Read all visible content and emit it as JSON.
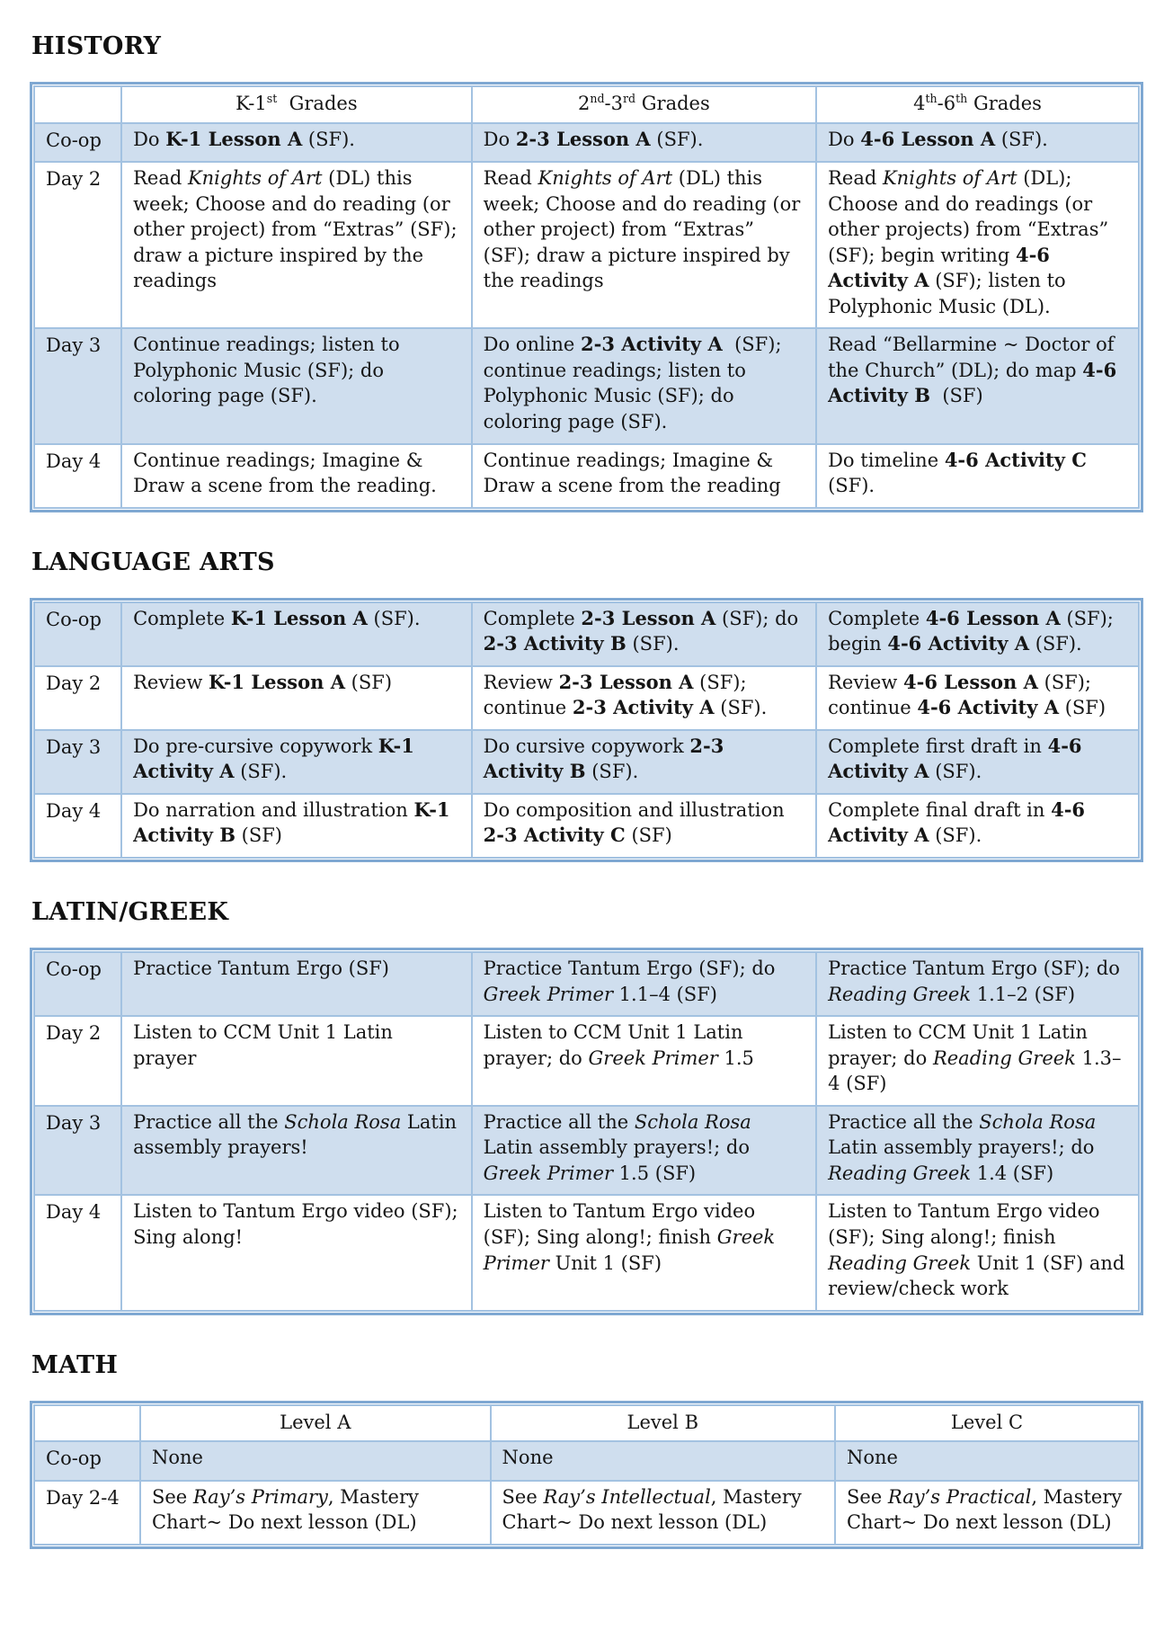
{
  "colors": {
    "outer_border": "#7fa8d2",
    "grid_line": "#a3c2e1",
    "shaded_row": "#cfdeee",
    "text": "#151515",
    "page_bg": "#ffffff"
  },
  "sections": [
    {
      "id": "history",
      "title": "HISTORY",
      "label_col_width": "7.9%",
      "header": [
        [
          {
            "t": "K-1"
          },
          {
            "t": "st",
            "sup": true
          },
          {
            "t": "  Grades"
          }
        ],
        [
          {
            "t": "2"
          },
          {
            "t": "nd",
            "sup": true
          },
          {
            "t": "-3"
          },
          {
            "t": "rd",
            "sup": true
          },
          {
            "t": " Grades"
          }
        ],
        [
          {
            "t": "4"
          },
          {
            "t": "th",
            "sup": true
          },
          {
            "t": "-6"
          },
          {
            "t": "th",
            "sup": true
          },
          {
            "t": " Grades"
          }
        ]
      ],
      "rows": [
        {
          "label": "Co-op",
          "shaded": true,
          "cells": [
            [
              {
                "t": "Do "
              },
              {
                "t": "K-1 Lesson A",
                "b": true
              },
              {
                "t": " (SF)."
              }
            ],
            [
              {
                "t": "Do "
              },
              {
                "t": "2-3 Lesson A",
                "b": true
              },
              {
                "t": " (SF)."
              }
            ],
            [
              {
                "t": "Do "
              },
              {
                "t": "4-6 Lesson A",
                "b": true
              },
              {
                "t": " (SF)."
              }
            ]
          ]
        },
        {
          "label": "Day 2",
          "shaded": false,
          "cells": [
            [
              {
                "t": "Read "
              },
              {
                "t": "Knights of Art",
                "i": true
              },
              {
                "t": " (DL) this week; Choose and do reading (or other project) from “Extras” (SF); draw a picture inspired by the readings"
              }
            ],
            [
              {
                "t": "Read "
              },
              {
                "t": "Knights of Art",
                "i": true
              },
              {
                "t": " (DL) this week; Choose and do reading (or other project) from “Extras” (SF); draw a picture inspired by the readings"
              }
            ],
            [
              {
                "t": "Read "
              },
              {
                "t": "Knights of Art",
                "i": true
              },
              {
                "t": " (DL); Choose and do readings (or other projects) from “Extras” (SF); begin writing "
              },
              {
                "t": "4-6 Activity A",
                "b": true
              },
              {
                "t": " (SF); listen to Polyphonic Music (DL)."
              }
            ]
          ]
        },
        {
          "label": "Day 3",
          "shaded": true,
          "cells": [
            [
              {
                "t": "Continue readings; listen to Polyphonic Music (SF); do coloring page (SF)."
              }
            ],
            [
              {
                "t": "Do online "
              },
              {
                "t": "2-3 Activity A",
                "b": true
              },
              {
                "t": "  (SF); continue readings; listen to Polyphonic Music (SF); do coloring page (SF)."
              }
            ],
            [
              {
                "t": "Read “Bellarmine ~ Doctor of the Church” (DL); do map "
              },
              {
                "t": "4-6 Activity B",
                "b": true
              },
              {
                "t": "  (SF)"
              }
            ]
          ]
        },
        {
          "label": "Day 4",
          "shaded": false,
          "cells": [
            [
              {
                "t": "Continue readings; Imagine & Draw a scene from the reading."
              }
            ],
            [
              {
                "t": "Continue readings; Imagine & Draw a scene from the reading"
              }
            ],
            [
              {
                "t": "Do timeline "
              },
              {
                "t": "4-6 Activity C",
                "b": true
              },
              {
                "t": " (SF)."
              }
            ]
          ]
        }
      ]
    },
    {
      "id": "language-arts",
      "title": "LANGUAGE ARTS",
      "label_col_width": "7.9%",
      "header": null,
      "rows": [
        {
          "label": "Co-op",
          "shaded": true,
          "cells": [
            [
              {
                "t": "Complete "
              },
              {
                "t": "K-1 Lesson A",
                "b": true
              },
              {
                "t": " (SF)."
              }
            ],
            [
              {
                "t": "Complete "
              },
              {
                "t": "2-3 Lesson A",
                "b": true
              },
              {
                "t": " (SF); do "
              },
              {
                "t": "2-3 Activity B",
                "b": true
              },
              {
                "t": " (SF)."
              }
            ],
            [
              {
                "t": "Complete "
              },
              {
                "t": "4-6 Lesson A",
                "b": true
              },
              {
                "t": " (SF); begin "
              },
              {
                "t": "4-6 Activity A",
                "b": true
              },
              {
                "t": " (SF)."
              }
            ]
          ]
        },
        {
          "label": "Day 2",
          "shaded": false,
          "cells": [
            [
              {
                "t": "Review "
              },
              {
                "t": "K-1 Lesson A",
                "b": true
              },
              {
                "t": " (SF)"
              }
            ],
            [
              {
                "t": "Review "
              },
              {
                "t": "2-3 Lesson A",
                "b": true
              },
              {
                "t": " (SF); continue "
              },
              {
                "t": "2-3 Activity A",
                "b": true
              },
              {
                "t": " (SF)."
              }
            ],
            [
              {
                "t": "Review "
              },
              {
                "t": "4-6 Lesson A",
                "b": true
              },
              {
                "t": " (SF); continue "
              },
              {
                "t": "4-6 Activity A",
                "b": true
              },
              {
                "t": " (SF)"
              }
            ]
          ]
        },
        {
          "label": "Day 3",
          "shaded": true,
          "cells": [
            [
              {
                "t": "Do pre-cursive copywork "
              },
              {
                "t": "K-1 Activity A",
                "b": true
              },
              {
                "t": " (SF)."
              }
            ],
            [
              {
                "t": "Do cursive copywork "
              },
              {
                "t": "2-3 Activity B",
                "b": true
              },
              {
                "t": " (SF)."
              }
            ],
            [
              {
                "t": "Complete first draft in "
              },
              {
                "t": "4-6 Activity A",
                "b": true
              },
              {
                "t": " (SF)."
              }
            ]
          ]
        },
        {
          "label": "Day 4",
          "shaded": false,
          "cells": [
            [
              {
                "t": "Do narration and illustration "
              },
              {
                "t": "K-1 Activity B",
                "b": true
              },
              {
                "t": " (SF)"
              }
            ],
            [
              {
                "t": "Do composition and illustration "
              },
              {
                "t": "2-3 Activity C",
                "b": true
              },
              {
                "t": " (SF)"
              }
            ],
            [
              {
                "t": "Complete final draft in "
              },
              {
                "t": "4-6 Activity A",
                "b": true
              },
              {
                "t": " (SF)."
              }
            ]
          ]
        }
      ]
    },
    {
      "id": "latin-greek",
      "title": "LATIN/GREEK",
      "label_col_width": "7.9%",
      "header": null,
      "rows": [
        {
          "label": "Co-op",
          "shaded": true,
          "cells": [
            [
              {
                "t": "Practice Tantum Ergo (SF)"
              }
            ],
            [
              {
                "t": "Practice Tantum Ergo (SF); do "
              },
              {
                "t": "Greek Primer",
                "i": true
              },
              {
                "t": " 1.1–4 (SF)"
              }
            ],
            [
              {
                "t": "Practice Tantum Ergo (SF); do "
              },
              {
                "t": "Reading Greek",
                "i": true
              },
              {
                "t": " 1.1–2 (SF)"
              }
            ]
          ]
        },
        {
          "label": "Day 2",
          "shaded": false,
          "cells": [
            [
              {
                "t": "Listen to CCM Unit 1 Latin prayer"
              }
            ],
            [
              {
                "t": "Listen to CCM Unit 1 Latin prayer; do "
              },
              {
                "t": "Greek Primer",
                "i": true
              },
              {
                "t": " 1.5"
              }
            ],
            [
              {
                "t": "Listen to CCM Unit 1 Latin prayer; do "
              },
              {
                "t": "Reading Greek",
                "i": true
              },
              {
                "t": " 1.3–4 (SF)"
              }
            ]
          ]
        },
        {
          "label": "Day 3",
          "shaded": true,
          "cells": [
            [
              {
                "t": "Practice all the "
              },
              {
                "t": "Schola Rosa",
                "i": true
              },
              {
                "t": " Latin assembly prayers!"
              }
            ],
            [
              {
                "t": "Practice all the "
              },
              {
                "t": "Schola Rosa",
                "i": true
              },
              {
                "t": " Latin assembly prayers!; do "
              },
              {
                "t": "Greek Primer",
                "i": true
              },
              {
                "t": " 1.5 (SF)"
              }
            ],
            [
              {
                "t": "Practice all the "
              },
              {
                "t": "Schola Rosa",
                "i": true
              },
              {
                "t": " Latin assembly prayers!; do "
              },
              {
                "t": "Reading Greek",
                "i": true
              },
              {
                "t": " 1.4 (SF)"
              }
            ]
          ]
        },
        {
          "label": "Day 4",
          "shaded": false,
          "cells": [
            [
              {
                "t": "Listen to Tantum Ergo video (SF); Sing along!"
              }
            ],
            [
              {
                "t": "Listen to Tantum Ergo video (SF); Sing along!; finish "
              },
              {
                "t": "Greek Primer",
                "i": true
              },
              {
                "t": " Unit 1 (SF)"
              }
            ],
            [
              {
                "t": "Listen to Tantum Ergo video (SF); Sing along!; finish "
              },
              {
                "t": "Reading Greek",
                "i": true
              },
              {
                "t": " Unit 1 (SF) and review/check work"
              }
            ]
          ]
        }
      ]
    },
    {
      "id": "math",
      "title": "MATH",
      "label_col_width": "9.6%",
      "header": [
        [
          {
            "t": "Level A"
          }
        ],
        [
          {
            "t": "Level B"
          }
        ],
        [
          {
            "t": "Level C"
          }
        ]
      ],
      "rows": [
        {
          "label": "Co-op",
          "shaded": true,
          "cells": [
            [
              {
                "t": "None"
              }
            ],
            [
              {
                "t": "None"
              }
            ],
            [
              {
                "t": "None"
              }
            ]
          ]
        },
        {
          "label": "Day 2-4",
          "shaded": false,
          "cells": [
            [
              {
                "t": "See "
              },
              {
                "t": "Ray’s Primary",
                "i": true
              },
              {
                "t": ", Mastery Chart~ Do next lesson (DL)"
              }
            ],
            [
              {
                "t": "See "
              },
              {
                "t": "Ray’s Intellectual",
                "i": true
              },
              {
                "t": ", Mastery Chart~ Do next lesson (DL)"
              }
            ],
            [
              {
                "t": "See "
              },
              {
                "t": "Ray’s Practical",
                "i": true
              },
              {
                "t": ", Mastery Chart~ Do next lesson (DL)"
              }
            ]
          ]
        }
      ]
    }
  ]
}
